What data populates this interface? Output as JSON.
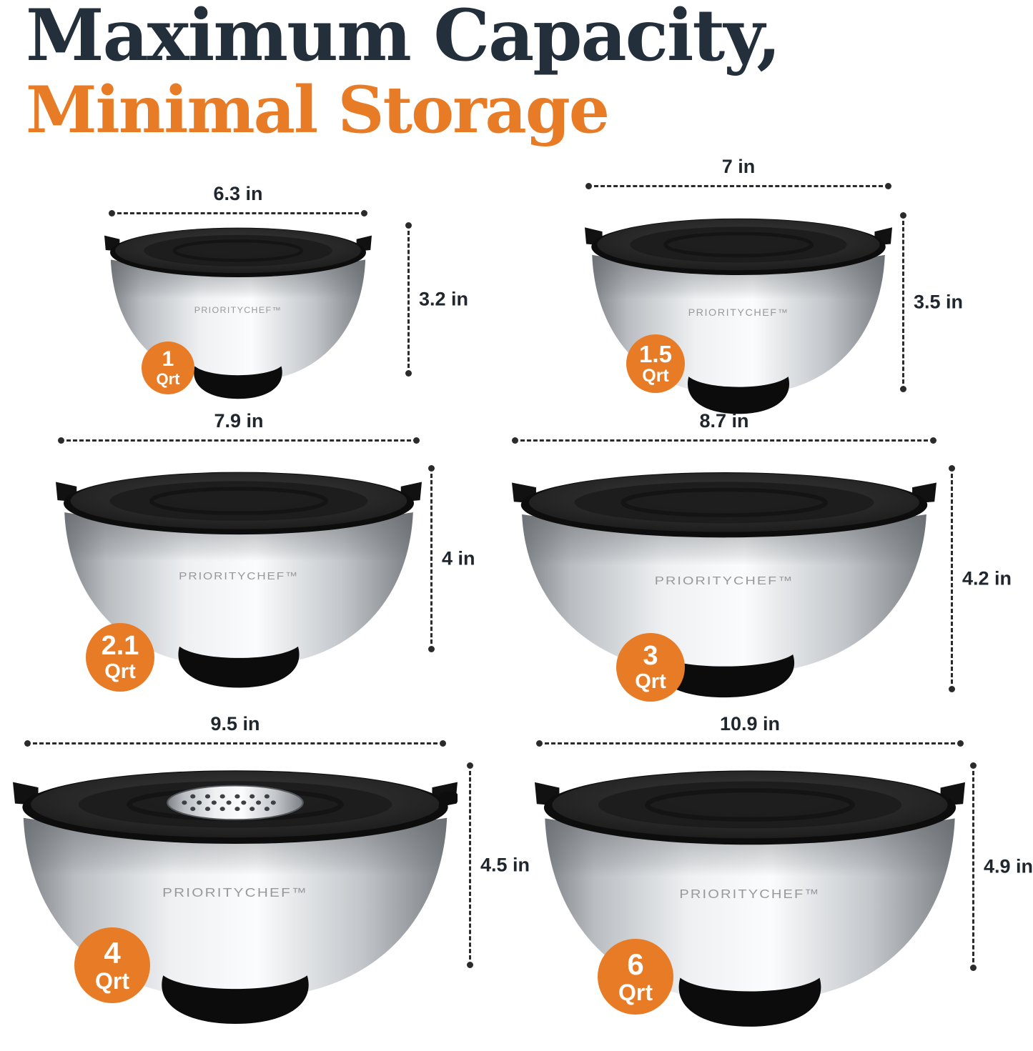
{
  "brand": "PRIORITYCHEF™",
  "title": {
    "line1": "Maximum Capacity,",
    "line2": "Minimal Storage"
  },
  "colors": {
    "title_dark": "#232f3b",
    "accent_orange": "#e87b25",
    "dimension_line": "#2b2b2b",
    "badge_text": "#ffffff"
  },
  "bowls": [
    {
      "name": "1 Qrt bowl",
      "capacity": "1",
      "unit": "Qrt",
      "width": "6.3 in",
      "height": "3.2 in"
    },
    {
      "name": "1.5 Qrt bowl",
      "capacity": "1.5",
      "unit": "Qrt",
      "width": "7 in",
      "height": "3.5 in"
    },
    {
      "name": "2.1 Qrt bowl",
      "capacity": "2.1",
      "unit": "Qrt",
      "width": "7.9 in",
      "height": "4 in"
    },
    {
      "name": "3 Qrt bowl",
      "capacity": "3",
      "unit": "Qrt",
      "width": "8.7 in",
      "height": "4.2 in"
    },
    {
      "name": "4 Qrt bowl",
      "capacity": "4",
      "unit": "Qrt",
      "width": "9.5 in",
      "height": "4.5 in"
    },
    {
      "name": "6 Qrt bowl",
      "capacity": "6",
      "unit": "Qrt",
      "width": "10.9 in",
      "height": "4.9 in"
    }
  ]
}
